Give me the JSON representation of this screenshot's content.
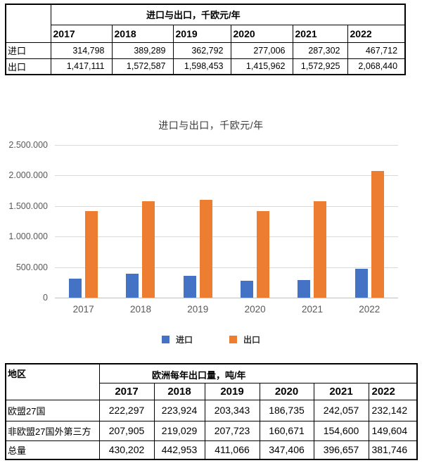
{
  "top_table": {
    "title": "进口与出口，千欧元/年",
    "corner_label": "",
    "years": [
      "2017",
      "2018",
      "2019",
      "2020",
      "2021",
      "2022"
    ],
    "rows": [
      {
        "label": "进口",
        "values": [
          "314,798",
          "389,289",
          "362,792",
          "277,006",
          "287,302",
          "467,712"
        ]
      },
      {
        "label": "出口",
        "values": [
          "1,417,111",
          "1,572,587",
          "1,598,453",
          "1,415,962",
          "1,572,925",
          "2,068,440"
        ]
      }
    ]
  },
  "chart_data": {
    "type": "bar",
    "title": "进口与出口，千欧元/年",
    "categories": [
      "2017",
      "2018",
      "2019",
      "2020",
      "2021",
      "2022"
    ],
    "series": [
      {
        "name": "进口",
        "color": "#4472C4",
        "values": [
          314798,
          389289,
          362792,
          277006,
          287302,
          467712
        ]
      },
      {
        "name": "出口",
        "color": "#ED7D31",
        "values": [
          1417111,
          1572587,
          1598453,
          1415962,
          1572925,
          2068440
        ]
      }
    ],
    "xlabel": "",
    "ylabel": "",
    "ylim": [
      0,
      2500000
    ],
    "ytick_values": [
      0,
      500000,
      1000000,
      1500000,
      2000000,
      2500000
    ],
    "ytick_labels": [
      "0",
      "500.000",
      "1.000.000",
      "1.500.000",
      "2.000.000",
      "2.500.000"
    ],
    "grid": true,
    "legend_position": "bottom"
  },
  "bottom_table": {
    "corner_label": "地区",
    "title": "欧洲每年出口量，吨/年",
    "years": [
      "2017",
      "2018",
      "2019",
      "2020",
      "2021",
      "2022"
    ],
    "rows": [
      {
        "label": "欧盟27国",
        "values": [
          "222,297",
          "223,924",
          "203,343",
          "186,735",
          "242,057",
          "232,142"
        ]
      },
      {
        "label": "非欧盟27国外第三方",
        "values": [
          "207,905",
          "219,029",
          "207,723",
          "160,671",
          "154,600",
          "149,604"
        ]
      },
      {
        "label": "总量",
        "values": [
          "430,202",
          "442,953",
          "411,066",
          "347,406",
          "396,657",
          "381,746"
        ]
      }
    ]
  }
}
